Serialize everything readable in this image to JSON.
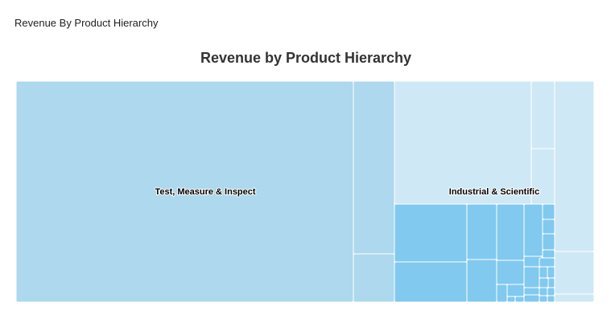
{
  "panel": {
    "title": "Revenue By Product Hierarchy"
  },
  "chart_data": {
    "type": "treemap",
    "title": "Revenue by Product Hierarchy",
    "colors": {
      "test_measure": "#add8ed",
      "industrial_light": "#cfe8f6",
      "industrial_dark": "#81c9ef"
    },
    "groups": [
      {
        "name": "Test, Measure & Inspect",
        "label": "Test, Measure & Inspect"
      },
      {
        "name": "Industrial & Scientific",
        "label": "Industrial & Scientific"
      }
    ]
  }
}
